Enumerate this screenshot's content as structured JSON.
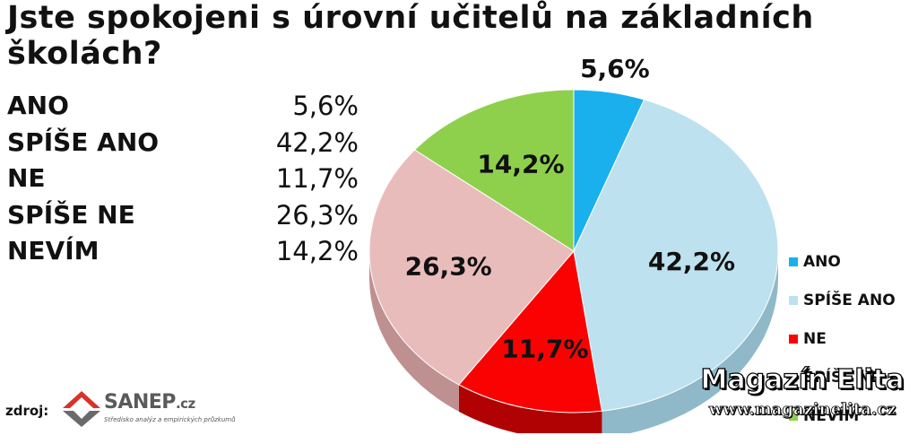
{
  "title": "Jste spokojeni s úrovní učitelů na základních školách?",
  "table": [
    {
      "label": "ANO",
      "value": "5,6%"
    },
    {
      "label": "SPÍŠE ANO",
      "value": "42,2%"
    },
    {
      "label": "NE",
      "value": "11,7%"
    },
    {
      "label": "SPÍŠE NE",
      "value": "26,3%"
    },
    {
      "label": "NEVÍM",
      "value": "14,2%"
    }
  ],
  "chart_data": {
    "type": "pie",
    "title": "Jste spokojeni s úrovní učitelů na základních školách?",
    "legend_position": "right",
    "slices": [
      {
        "label": "ANO",
        "value": 5.6,
        "display": "5,6%",
        "color": "#1ab0ee",
        "side": "#0e86bc"
      },
      {
        "label": "SPÍŠE ANO",
        "value": 42.2,
        "display": "42,2%",
        "color": "#bde1ee",
        "side": "#8fb9c8"
      },
      {
        "label": "NE",
        "value": 11.7,
        "display": "11,7%",
        "color": "#fa0202",
        "side": "#b00202"
      },
      {
        "label": "SPÍŠE NE",
        "value": 26.3,
        "display": "26,3%",
        "color": "#e9bcbc",
        "side": "#bf9090"
      },
      {
        "label": "NEVÍM",
        "value": 14.2,
        "display": "14,2%",
        "color": "#8ed04c",
        "side": "#5f9a2e"
      }
    ]
  },
  "source": {
    "label": "zdroj:",
    "logo_name": "SANEP",
    "logo_suffix": ".cz",
    "logo_tagline": "Středisko analýz a empirických průzkumů",
    "logo_color": "#d9322b"
  },
  "watermark": {
    "brand": "Magazín Elita",
    "url": "www.magazinelita.cz"
  }
}
